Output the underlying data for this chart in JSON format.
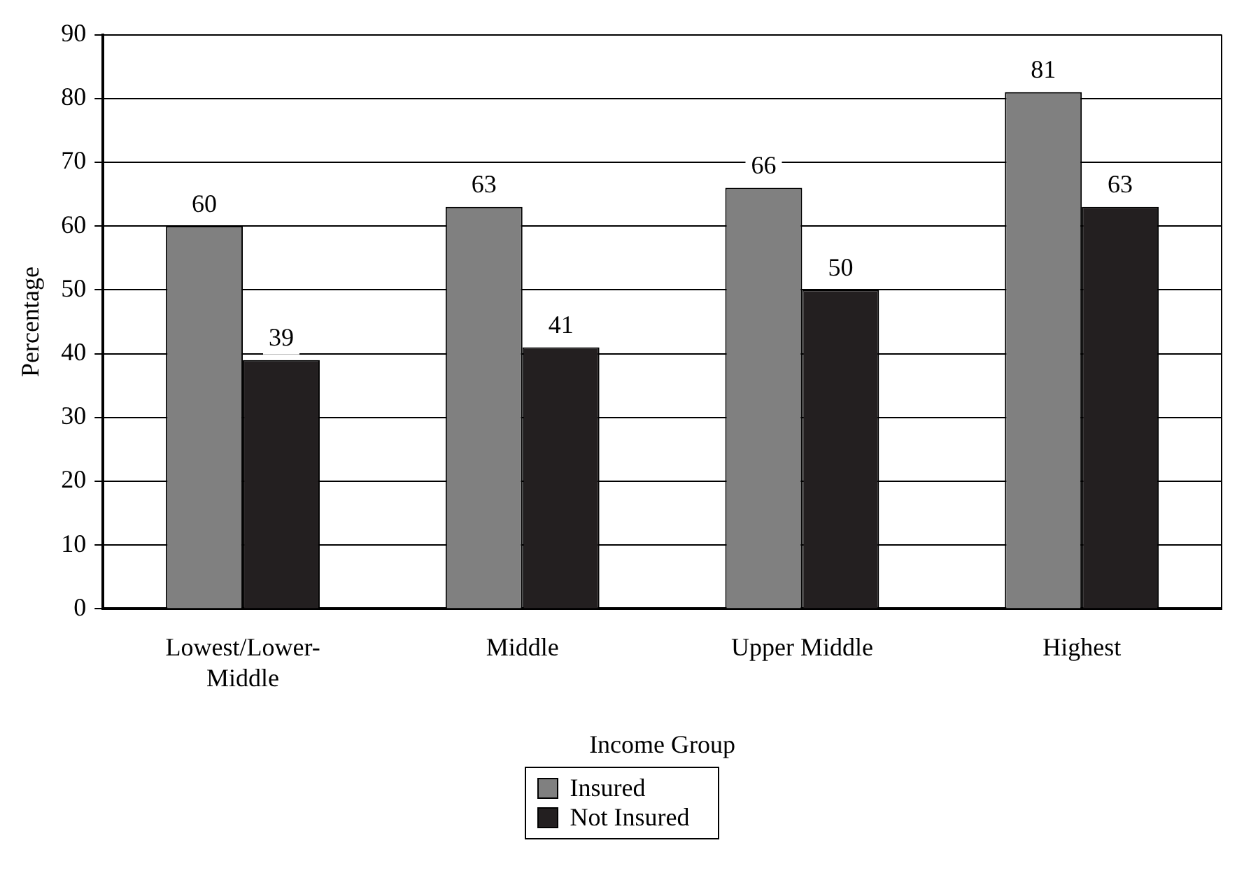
{
  "chart_data": {
    "type": "bar",
    "xlabel": "Income Group",
    "ylabel": "Percentage",
    "categories": [
      "Lowest/Lower-Middle",
      "Middle",
      "Upper Middle",
      "Highest"
    ],
    "series": [
      {
        "name": "Insured",
        "color": "#808080",
        "values": [
          60,
          63,
          66,
          81
        ]
      },
      {
        "name": "Not Insured",
        "color": "#231f20",
        "values": [
          39,
          41,
          50,
          63
        ]
      }
    ],
    "ylim": [
      0,
      90
    ],
    "yticks": [
      0,
      10,
      20,
      30,
      40,
      50,
      60,
      70,
      80,
      90
    ],
    "grid": "y",
    "legend": "bottom",
    "data_labels": true
  }
}
